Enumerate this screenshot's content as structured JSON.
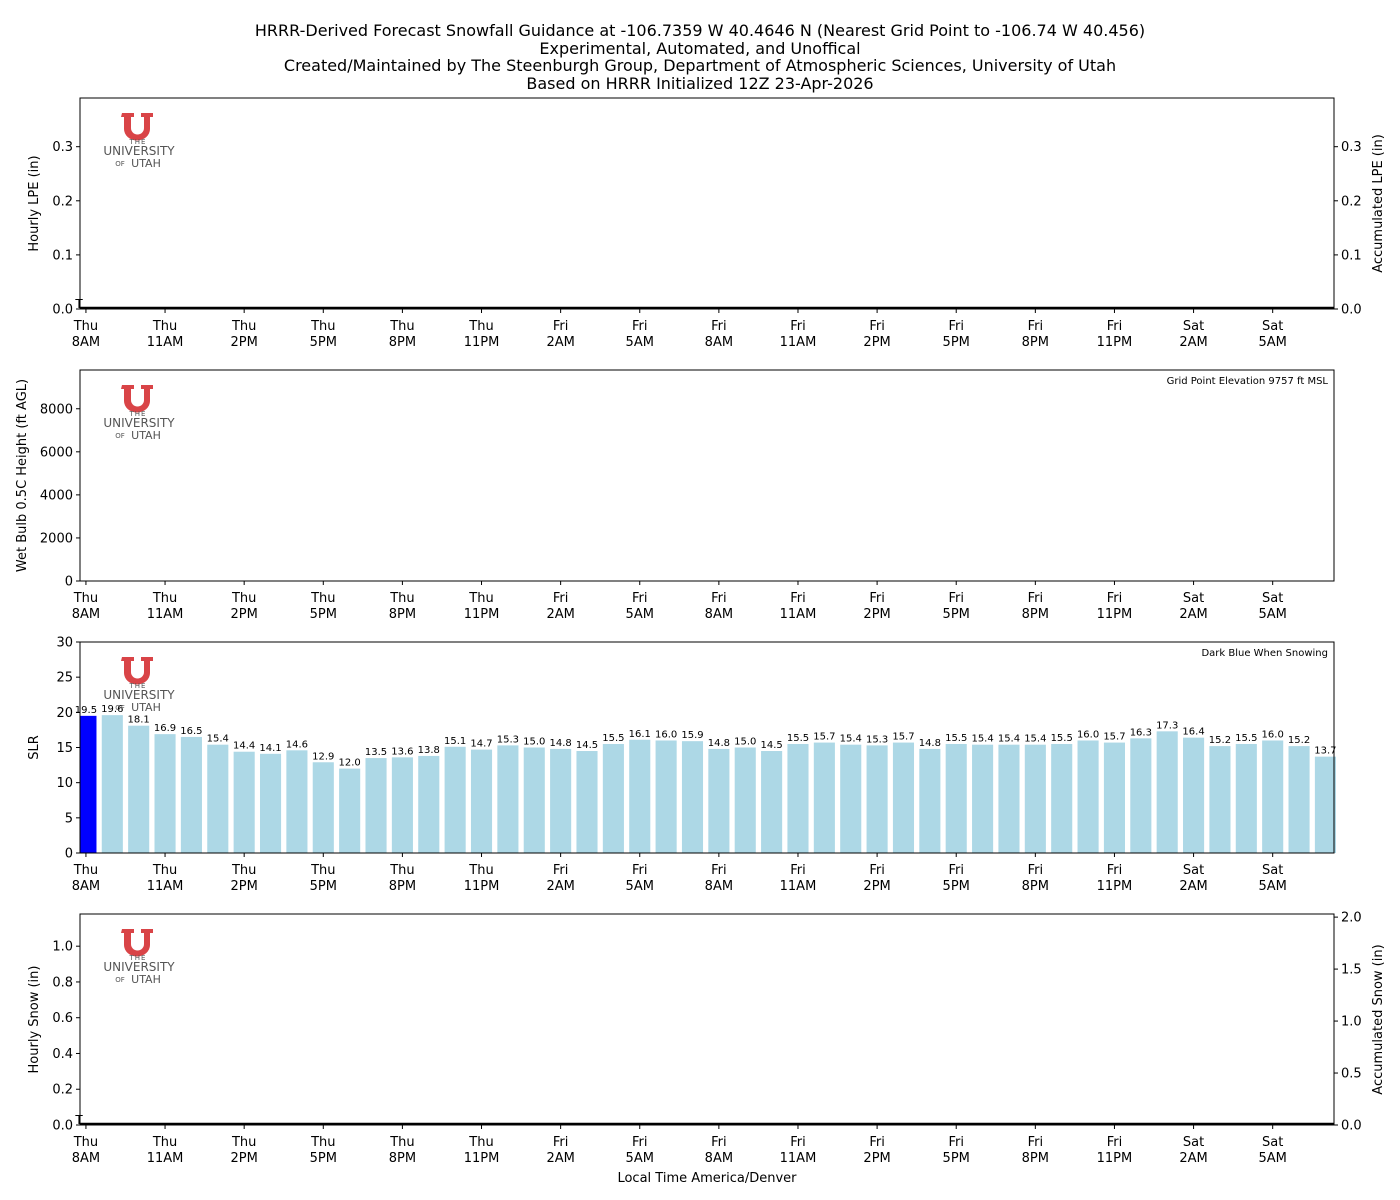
{
  "title_lines": [
    "HRRR-Derived Forecast Snowfall Guidance at -106.7359 W 40.4646 N (Nearest Grid Point to -106.74 W 40.456)",
    "Experimental, Automated, and Unoffical",
    "Created/Maintained by The Steenburgh Group, Department of Atmospheric Sciences, University of Utah",
    "Based on HRRR Initialized 12Z 23-Apr-2026"
  ],
  "logo": {
    "top": "THE",
    "main": "UNIVERSITY",
    "bottom_of": "OF",
    "bottom_name": "UTAH",
    "color": "#d94447"
  },
  "x_axis": {
    "label": "Local Time America/Denver",
    "ticks": [
      {
        "day": "Thu",
        "time": "8AM"
      },
      {
        "day": "Thu",
        "time": "11AM"
      },
      {
        "day": "Thu",
        "time": "2PM"
      },
      {
        "day": "Thu",
        "time": "5PM"
      },
      {
        "day": "Thu",
        "time": "8PM"
      },
      {
        "day": "Thu",
        "time": "11PM"
      },
      {
        "day": "Fri",
        "time": "2AM"
      },
      {
        "day": "Fri",
        "time": "5AM"
      },
      {
        "day": "Fri",
        "time": "8AM"
      },
      {
        "day": "Fri",
        "time": "11AM"
      },
      {
        "day": "Fri",
        "time": "2PM"
      },
      {
        "day": "Fri",
        "time": "5PM"
      },
      {
        "day": "Fri",
        "time": "8PM"
      },
      {
        "day": "Fri",
        "time": "11PM"
      },
      {
        "day": "Sat",
        "time": "2AM"
      },
      {
        "day": "Sat",
        "time": "5AM"
      }
    ]
  },
  "chart_data": [
    {
      "type": "bar",
      "ylabel": "Hourly LPE (in)",
      "ylabel_right": "Accumulated LPE (in)",
      "ylim": [
        0,
        0.39
      ],
      "yticks": [
        "0.0",
        "0.1",
        "0.2",
        "0.3"
      ],
      "yticks_right": [
        "0.0",
        "0.1",
        "0.2",
        "0.3"
      ],
      "values": [],
      "trace_marker": "T",
      "annotation": ""
    },
    {
      "type": "bar",
      "ylabel": "Wet Bulb 0.5C Height (ft AGL)",
      "ylim": [
        0,
        9800
      ],
      "yticks": [
        "0",
        "2000",
        "4000",
        "6000",
        "8000"
      ],
      "values": [],
      "annotation": "Grid Point Elevation 9757 ft MSL"
    },
    {
      "type": "bar",
      "ylabel": "SLR",
      "ylim": [
        0,
        30
      ],
      "yticks": [
        "0",
        "5",
        "10",
        "15",
        "20",
        "25",
        "30"
      ],
      "annotation": "Dark Blue When Snowing",
      "snowing_color": "#0000ff",
      "bar_color": "#add8e6",
      "values": [
        19.5,
        19.6,
        18.1,
        16.9,
        16.5,
        15.4,
        14.4,
        14.1,
        14.6,
        12.9,
        12.0,
        13.5,
        13.6,
        13.8,
        15.1,
        14.7,
        15.3,
        15.0,
        14.8,
        14.5,
        15.5,
        16.1,
        16.0,
        15.9,
        14.8,
        15.0,
        14.5,
        15.5,
        15.7,
        15.4,
        15.3,
        15.7,
        14.8,
        15.5,
        15.4,
        15.4,
        15.4,
        15.5,
        16.0,
        15.7,
        16.3,
        17.3,
        16.4,
        15.2,
        15.5,
        16.0,
        15.2,
        13.7
      ],
      "labels": [
        "19.5",
        "19.6",
        "18.1",
        "16.9",
        "16.5",
        "15.4",
        "14.4",
        "14.1",
        "14.6",
        "12.9",
        "12.0",
        "13.5",
        "13.6",
        "13.8",
        "15.1",
        "14.7",
        "15.3",
        "15.0",
        "14.8",
        "14.5",
        "15.5",
        "16.1",
        "16.0",
        "15.9",
        "14.8",
        "15.0",
        "14.5",
        "15.5",
        "15.7",
        "15.4",
        "15.3",
        "15.7",
        "14.8",
        "15.5",
        "15.4",
        "15.4",
        "15.4",
        "15.5",
        "16.0",
        "15.7",
        "16.3",
        "17.3",
        "16.4",
        "15.2",
        "15.5",
        "16.0",
        "15.2",
        "13.7"
      ],
      "snowing": [
        true,
        false,
        false,
        false,
        false,
        false,
        false,
        false,
        false,
        false,
        false,
        false,
        false,
        false,
        false,
        false,
        false,
        false,
        false,
        false,
        false,
        false,
        false,
        false,
        false,
        false,
        false,
        false,
        false,
        false,
        false,
        false,
        false,
        false,
        false,
        false,
        false,
        false,
        false,
        false,
        false,
        false,
        false,
        false,
        false,
        false,
        false,
        false
      ]
    },
    {
      "type": "bar",
      "ylabel": "Hourly Snow (in)",
      "ylabel_right": "Accumulated Snow (in)",
      "ylim": [
        0,
        1.18
      ],
      "yticks": [
        "0.0",
        "0.2",
        "0.4",
        "0.6",
        "0.8",
        "1.0"
      ],
      "ylim_right": [
        0,
        2.03
      ],
      "yticks_right": [
        "0.0",
        "0.5",
        "1.0",
        "1.5",
        "2.0"
      ],
      "values": [],
      "trace_marker": "T",
      "annotation": ""
    }
  ]
}
